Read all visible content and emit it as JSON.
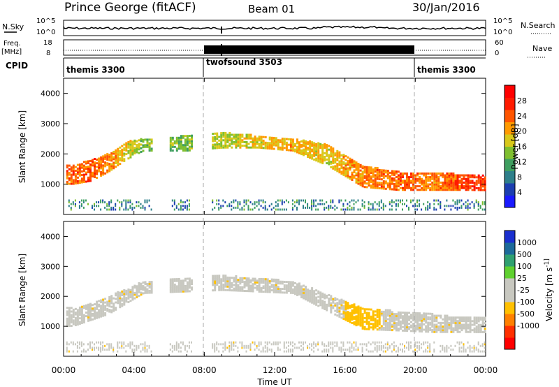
{
  "header": {
    "station": "Prince George (fitACF)",
    "beam": "Beam 01",
    "date": "30/Jan/2016"
  },
  "top_panels": {
    "nsky_label": "N.Sky",
    "nsearch_label": "N.Search",
    "nsky_ticks": [
      "10^5",
      "10^0"
    ],
    "nsearch_ticks": [
      "10^5",
      "10^0"
    ],
    "freq_label_1": "Freq.",
    "freq_label_2": "[MHz]",
    "freq_ticks": [
      "18",
      "8"
    ],
    "nave_label": "Nave",
    "nave_ticks": [
      "60",
      "0"
    ],
    "cpid_label": "CPID"
  },
  "cpid_segments": [
    {
      "name": "themis 3300",
      "start_hour": 0,
      "end_hour": 8
    },
    {
      "name": "twofsound 3503",
      "start_hour": 8,
      "end_hour": 20
    },
    {
      "name": "themis 3300",
      "start_hour": 20,
      "end_hour": 24
    }
  ],
  "colors": {
    "power_scale": [
      "#1a1aff",
      "#1c3fb0",
      "#2e7f8a",
      "#3f9f60",
      "#7fbf2f",
      "#d8c81a",
      "#ff9a00",
      "#ff5500",
      "#ff1a00",
      "#ff0000"
    ],
    "velocity_scale": [
      "#1a2fcf",
      "#1c6a9a",
      "#2fa070",
      "#5fd02f",
      "#c8c8c0",
      "#c8c8c0",
      "#ffc000",
      "#ff8000",
      "#ff3000",
      "#ff0000"
    ]
  },
  "chart_data": [
    {
      "type": "heatmap",
      "name": "power",
      "ylabel": "Slant Range [km]",
      "xlabel": "",
      "ylim": [
        0,
        4500
      ],
      "yticks": [
        1000,
        2000,
        3000,
        4000
      ],
      "xlim": [
        0,
        24
      ],
      "colorbar_label": "Power [dB]",
      "colorbar_ticks": [
        "4",
        "8",
        "12",
        "16",
        "20",
        "24",
        "28"
      ],
      "colorbar_range": [
        0,
        32
      ],
      "echo_band": [
        {
          "hour": 0.5,
          "low": 1000,
          "high": 1600,
          "value": 24
        },
        {
          "hour": 1.5,
          "low": 1100,
          "high": 1800,
          "value": 24
        },
        {
          "hour": 2.5,
          "low": 1400,
          "high": 2000,
          "value": 22
        },
        {
          "hour": 3.5,
          "low": 1800,
          "high": 2400,
          "value": 18
        },
        {
          "hour": 4.5,
          "low": 2100,
          "high": 2500,
          "value": 14
        },
        {
          "hour": 7.0,
          "low": 2100,
          "high": 2600,
          "value": 14
        },
        {
          "hour": 9.0,
          "low": 2200,
          "high": 2700,
          "value": 16
        },
        {
          "hour": 11.0,
          "low": 2200,
          "high": 2600,
          "value": 18
        },
        {
          "hour": 13.0,
          "low": 2100,
          "high": 2500,
          "value": 20
        },
        {
          "hour": 15.0,
          "low": 1600,
          "high": 2300,
          "value": 18
        },
        {
          "hour": 17.0,
          "low": 900,
          "high": 1600,
          "value": 22
        },
        {
          "hour": 19.0,
          "low": 800,
          "high": 1400,
          "value": 24
        },
        {
          "hour": 21.0,
          "low": 800,
          "high": 1400,
          "value": 22
        },
        {
          "hour": 23.0,
          "low": 800,
          "high": 1300,
          "value": 26
        }
      ]
    },
    {
      "type": "heatmap",
      "name": "velocity",
      "ylabel": "Slant Range [km]",
      "xlabel": "Time UT",
      "ylim": [
        0,
        4500
      ],
      "yticks": [
        1000,
        2000,
        3000,
        4000
      ],
      "xlim": [
        0,
        24
      ],
      "xticks": [
        "00:00",
        "04:00",
        "08:00",
        "12:00",
        "16:00",
        "20:00",
        "00:00"
      ],
      "colorbar_label": "Velocity [m s^-1]",
      "colorbar_ticks": [
        "1000",
        "500",
        "100",
        "25",
        "-25",
        "-100",
        "-500",
        "-1000"
      ],
      "echo_band": [
        {
          "hour": 0.5,
          "low": 1000,
          "high": 1600,
          "value": 0
        },
        {
          "hour": 2.5,
          "low": 1400,
          "high": 2000,
          "value": 0
        },
        {
          "hour": 4.5,
          "low": 2100,
          "high": 2500,
          "value": 0
        },
        {
          "hour": 9.0,
          "low": 2200,
          "high": 2700,
          "value": 0
        },
        {
          "hour": 13.0,
          "low": 2100,
          "high": 2500,
          "value": 0
        },
        {
          "hour": 17.0,
          "low": 900,
          "high": 1600,
          "value": -80
        },
        {
          "hour": 21.0,
          "low": 800,
          "high": 1400,
          "value": 0
        },
        {
          "hour": 23.0,
          "low": 800,
          "high": 1300,
          "value": 0
        }
      ]
    }
  ]
}
